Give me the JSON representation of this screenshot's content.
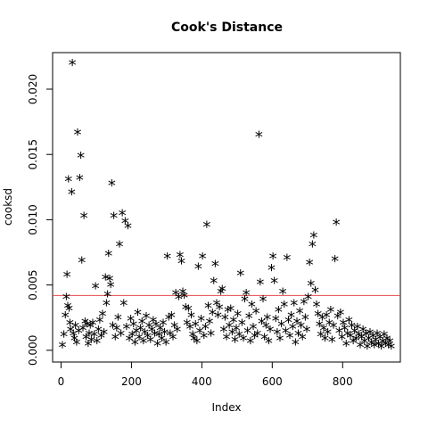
{
  "chart_data": {
    "type": "scatter",
    "title": "Cook's Distance",
    "xlabel": "Index",
    "ylabel": "cooksd",
    "xlim": [
      -24,
      964
    ],
    "ylim": [
      -0.0009,
      0.0228
    ],
    "x_ticks": [
      0,
      200,
      400,
      600,
      800
    ],
    "x_tick_labels": [
      "0",
      "200",
      "400",
      "600",
      "800"
    ],
    "y_ticks": [
      0.0,
      0.005,
      0.01,
      0.015,
      0.02
    ],
    "y_tick_labels": [
      "0.000",
      "0.005",
      "0.010",
      "0.015",
      "0.020"
    ],
    "reference_line": {
      "y": 0.0042,
      "color": "#e8484d"
    },
    "marker": "*",
    "marker_color": "#000000",
    "grid": false,
    "points": [
      [
        4,
        0.0003
      ],
      [
        8,
        0.0011
      ],
      [
        12,
        0.0026
      ],
      [
        15,
        0.004
      ],
      [
        17,
        0.0057
      ],
      [
        19,
        0.0033
      ],
      [
        21,
        0.013
      ],
      [
        23,
        0.0031
      ],
      [
        25,
        0.002
      ],
      [
        27,
        0.0015
      ],
      [
        30,
        0.012
      ],
      [
        32,
        0.0219
      ],
      [
        35,
        0.0012
      ],
      [
        38,
        0.0008
      ],
      [
        41,
        0.0018
      ],
      [
        44,
        0.0005
      ],
      [
        47,
        0.0166
      ],
      [
        50,
        0.0014
      ],
      [
        53,
        0.0131
      ],
      [
        56,
        0.0148
      ],
      [
        59,
        0.0068
      ],
      [
        62,
        0.0016
      ],
      [
        65,
        0.0102
      ],
      [
        68,
        0.0021
      ],
      [
        71,
        0.0009
      ],
      [
        74,
        0.0019
      ],
      [
        77,
        0.0004
      ],
      [
        80,
        0.0012
      ],
      [
        83,
        0.0018
      ],
      [
        86,
        0.0007
      ],
      [
        90,
        0.002
      ],
      [
        94,
        0.0011
      ],
      [
        98,
        0.0048
      ],
      [
        102,
        0.0006
      ],
      [
        106,
        0.0015
      ],
      [
        110,
        0.0022
      ],
      [
        114,
        0.001
      ],
      [
        118,
        0.0027
      ],
      [
        122,
        0.0013
      ],
      [
        126,
        0.0055
      ],
      [
        129,
        0.0035
      ],
      [
        132,
        0.0042
      ],
      [
        135,
        0.0073
      ],
      [
        138,
        0.0054
      ],
      [
        141,
        0.0049
      ],
      [
        144,
        0.0127
      ],
      [
        147,
        0.0018
      ],
      [
        150,
        0.0102
      ],
      [
        154,
        0.0009
      ],
      [
        158,
        0.0016
      ],
      [
        162,
        0.0024
      ],
      [
        166,
        0.008
      ],
      [
        170,
        0.0012
      ],
      [
        174,
        0.0104
      ],
      [
        178,
        0.0035
      ],
      [
        182,
        0.0098
      ],
      [
        186,
        0.0017
      ],
      [
        190,
        0.0094
      ],
      [
        194,
        0.0008
      ],
      [
        198,
        0.0023
      ],
      [
        202,
        0.0011
      ],
      [
        206,
        0.0019
      ],
      [
        210,
        0.0005
      ],
      [
        214,
        0.0014
      ],
      [
        218,
        0.0028
      ],
      [
        222,
        0.0009
      ],
      [
        226,
        0.0016
      ],
      [
        230,
        0.0021
      ],
      [
        234,
        0.0006
      ],
      [
        238,
        0.0013
      ],
      [
        242,
        0.0025
      ],
      [
        246,
        0.001
      ],
      [
        250,
        0.0018
      ],
      [
        254,
        0.0007
      ],
      [
        258,
        0.0015
      ],
      [
        262,
        0.0022
      ],
      [
        266,
        0.0012
      ],
      [
        270,
        0.0019
      ],
      [
        274,
        0.0004
      ],
      [
        278,
        0.0011
      ],
      [
        282,
        0.0016
      ],
      [
        286,
        0.0008
      ],
      [
        290,
        0.002
      ],
      [
        294,
        0.0013
      ],
      [
        298,
        0.0005
      ],
      [
        302,
        0.0071
      ],
      [
        306,
        0.0024
      ],
      [
        310,
        0.0012
      ],
      [
        314,
        0.0026
      ],
      [
        318,
        0.0009
      ],
      [
        322,
        0.0018
      ],
      [
        326,
        0.0043
      ],
      [
        330,
        0.0015
      ],
      [
        334,
        0.004
      ],
      [
        338,
        0.0072
      ],
      [
        342,
        0.0067
      ],
      [
        346,
        0.0044
      ],
      [
        350,
        0.0041
      ],
      [
        354,
        0.0032
      ],
      [
        358,
        0.002
      ],
      [
        362,
        0.0031
      ],
      [
        366,
        0.0017
      ],
      [
        370,
        0.0026
      ],
      [
        374,
        0.0011
      ],
      [
        378,
        0.0008
      ],
      [
        382,
        0.0019
      ],
      [
        386,
        0.0006
      ],
      [
        390,
        0.0063
      ],
      [
        394,
        0.0014
      ],
      [
        398,
        0.0023
      ],
      [
        402,
        0.0071
      ],
      [
        406,
        0.001
      ],
      [
        410,
        0.0017
      ],
      [
        414,
        0.0095
      ],
      [
        418,
        0.0033
      ],
      [
        422,
        0.0021
      ],
      [
        426,
        0.0012
      ],
      [
        430,
        0.0028
      ],
      [
        434,
        0.0052
      ],
      [
        438,
        0.0065
      ],
      [
        442,
        0.0035
      ],
      [
        446,
        0.0026
      ],
      [
        450,
        0.0032
      ],
      [
        454,
        0.0044
      ],
      [
        458,
        0.0046
      ],
      [
        462,
        0.0015
      ],
      [
        466,
        0.0024
      ],
      [
        470,
        0.0009
      ],
      [
        474,
        0.003
      ],
      [
        478,
        0.0018
      ],
      [
        482,
        0.0031
      ],
      [
        486,
        0.0013
      ],
      [
        490,
        0.0022
      ],
      [
        494,
        0.0007
      ],
      [
        498,
        0.0016
      ],
      [
        502,
        0.0027
      ],
      [
        506,
        0.0011
      ],
      [
        510,
        0.0058
      ],
      [
        514,
        0.002
      ],
      [
        518,
        0.0008
      ],
      [
        522,
        0.0038
      ],
      [
        526,
        0.0043
      ],
      [
        530,
        0.0014
      ],
      [
        534,
        0.0025
      ],
      [
        538,
        0.0006
      ],
      [
        542,
        0.0034
      ],
      [
        546,
        0.0017
      ],
      [
        550,
        0.001
      ],
      [
        554,
        0.0029
      ],
      [
        558,
        0.0012
      ],
      [
        562,
        0.0164
      ],
      [
        566,
        0.0051
      ],
      [
        570,
        0.0021
      ],
      [
        574,
        0.0038
      ],
      [
        578,
        0.0009
      ],
      [
        582,
        0.0018
      ],
      [
        586,
        0.0024
      ],
      [
        590,
        0.0006
      ],
      [
        594,
        0.0015
      ],
      [
        598,
        0.0062
      ],
      [
        602,
        0.0071
      ],
      [
        606,
        0.0052
      ],
      [
        610,
        0.0023
      ],
      [
        614,
        0.0013
      ],
      [
        618,
        0.003
      ],
      [
        622,
        0.0008
      ],
      [
        626,
        0.0019
      ],
      [
        630,
        0.0044
      ],
      [
        634,
        0.0034
      ],
      [
        638,
        0.0014
      ],
      [
        642,
        0.007
      ],
      [
        646,
        0.0022
      ],
      [
        650,
        0.001
      ],
      [
        654,
        0.0026
      ],
      [
        658,
        0.0017
      ],
      [
        662,
        0.0035
      ],
      [
        666,
        0.0005
      ],
      [
        670,
        0.0021
      ],
      [
        674,
        0.0012
      ],
      [
        678,
        0.0029
      ],
      [
        682,
        0.0018
      ],
      [
        686,
        0.0009
      ],
      [
        690,
        0.0036
      ],
      [
        694,
        0.0024
      ],
      [
        698,
        0.0015
      ],
      [
        702,
        0.004
      ],
      [
        706,
        0.0066
      ],
      [
        710,
        0.005
      ],
      [
        714,
        0.008
      ],
      [
        718,
        0.0087
      ],
      [
        722,
        0.0045
      ],
      [
        726,
        0.0034
      ],
      [
        730,
        0.0027
      ],
      [
        734,
        0.0019
      ],
      [
        738,
        0.0011
      ],
      [
        742,
        0.0024
      ],
      [
        746,
        0.0016
      ],
      [
        750,
        0.0008
      ],
      [
        754,
        0.0026
      ],
      [
        758,
        0.0013
      ],
      [
        762,
        0.002
      ],
      [
        766,
        0.003
      ],
      [
        770,
        0.0007
      ],
      [
        774,
        0.0018
      ],
      [
        778,
        0.0069
      ],
      [
        782,
        0.0097
      ],
      [
        786,
        0.0025
      ],
      [
        790,
        0.0014
      ],
      [
        794,
        0.0028
      ],
      [
        798,
        0.0009
      ],
      [
        802,
        0.002
      ],
      [
        806,
        0.0016
      ],
      [
        810,
        0.0004
      ],
      [
        814,
        0.0012
      ],
      [
        818,
        0.0022
      ],
      [
        822,
        0.001
      ],
      [
        826,
        0.0018
      ],
      [
        830,
        0.0006
      ],
      [
        834,
        0.0014
      ],
      [
        838,
        0.0008
      ],
      [
        842,
        0.0017
      ],
      [
        846,
        0.0011
      ],
      [
        850,
        0.0003
      ],
      [
        854,
        0.0009
      ],
      [
        858,
        0.0015
      ],
      [
        862,
        0.0006
      ],
      [
        866,
        0.0012
      ],
      [
        870,
        0.0002
      ],
      [
        874,
        0.0008
      ],
      [
        878,
        0.0013
      ],
      [
        882,
        0.0005
      ],
      [
        886,
        0.001
      ],
      [
        890,
        0.0003
      ],
      [
        894,
        0.0007
      ],
      [
        898,
        0.0012
      ],
      [
        902,
        0.0004
      ],
      [
        906,
        0.0009
      ],
      [
        910,
        0.0002
      ],
      [
        914,
        0.0006
      ],
      [
        918,
        0.0011
      ],
      [
        922,
        0.0004
      ],
      [
        926,
        0.0008
      ],
      [
        930,
        0.0003
      ],
      [
        934,
        0.0006
      ],
      [
        938,
        0.0002
      ]
    ]
  }
}
